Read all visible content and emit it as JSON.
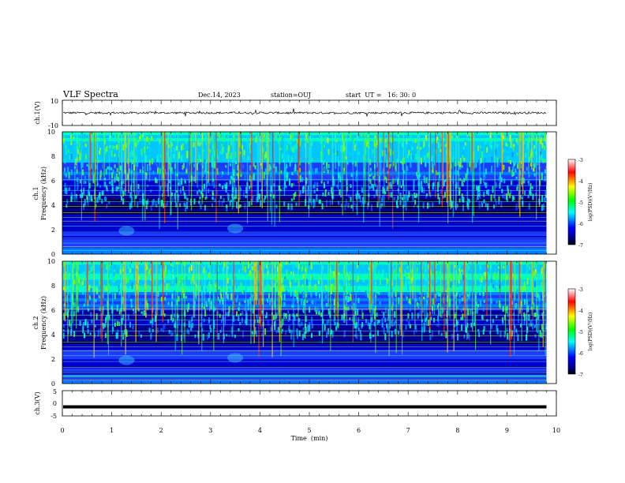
{
  "header": {
    "title": "VLF Spectra",
    "date": "Dec.14, 2023",
    "station": "station=OUJ",
    "start": "start  UT =   16: 30: 0"
  },
  "colorbar": {
    "label": "log(PSD)(V²/Hz)",
    "ticks": [
      "-3",
      "-4",
      "-5",
      "-6",
      "-7"
    ],
    "colors": [
      "#ffffff",
      "#ff0000",
      "#ffff00",
      "#00ff00",
      "#00ffff",
      "#0000ff",
      "#000080",
      "#000000"
    ]
  },
  "chart_data": [
    {
      "type": "line",
      "ylabel": "ch.1(V)",
      "yticks": [
        "10",
        "-10"
      ],
      "ylim": [
        -10,
        10
      ],
      "x_range": [
        0,
        9.8
      ],
      "baseline": 0,
      "description": "noisy waveform near 0 V"
    },
    {
      "type": "heatmap",
      "panel_label": "ch.1",
      "ylabel": "Frequency  (kHz)",
      "yticks": [
        "0",
        "2",
        "4",
        "6",
        "8",
        "10"
      ],
      "ylim": [
        0,
        10
      ],
      "xlim": [
        0,
        9.8
      ],
      "z_range": [
        -7,
        -3
      ]
    },
    {
      "type": "heatmap",
      "panel_label": "ch.2",
      "ylabel": "Frequency  (kHz)",
      "yticks": [
        "0",
        "2",
        "4",
        "6",
        "8",
        "10"
      ],
      "ylim": [
        0,
        10
      ],
      "xlim": [
        0,
        9.8
      ],
      "z_range": [
        -7,
        -3
      ]
    },
    {
      "type": "line",
      "ylabel": "ch.3(V)",
      "yticks": [
        "5",
        "0",
        "-5"
      ],
      "ylim": [
        -5,
        5
      ],
      "x_range": [
        0,
        9.8
      ],
      "constant": -1.4,
      "description": "thick constant line"
    }
  ],
  "xaxis": {
    "label": "Time  (min)",
    "ticks": [
      "0",
      "1",
      "2",
      "3",
      "4",
      "5",
      "6",
      "7",
      "8",
      "9",
      "10"
    ],
    "xlim": [
      0,
      10
    ]
  }
}
